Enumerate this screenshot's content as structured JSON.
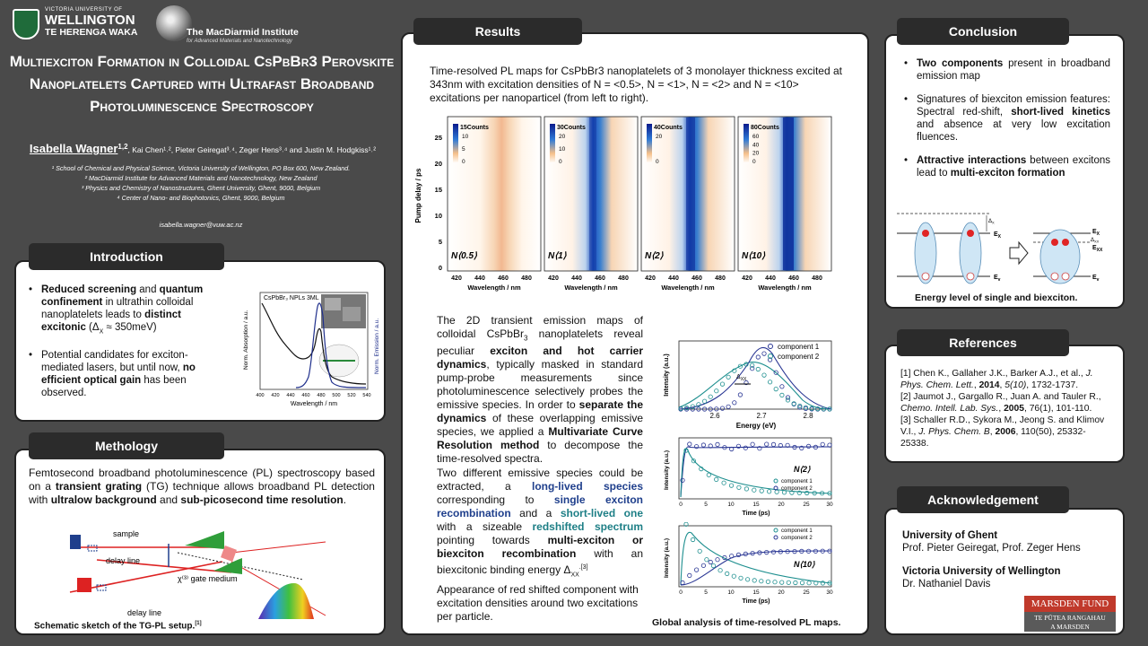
{
  "header": {
    "vuw_line1": "VICTORIA UNIVERSITY OF",
    "vuw_line2": "WELLINGTON",
    "vuw_line3": "TE HERENGA WAKA",
    "mac_name": "The MacDiarmid Institute",
    "mac_sub": "for Advanced Materials and Nanotechnology",
    "title": "Multiexciton Formation in Colloidal CsPbBr3 Perovskite Nanoplatelets Captured with Ultrafast Broadband Photoluminescence Spectroscopy",
    "lead_author": "Isabella Wagner",
    "lead_sup": "1,2",
    "coauthors": ", Kai Chen¹˒², Pieter Geiregat³˒⁴, Zeger Hens³˒⁴ and Justin M. Hodgkiss¹˒²",
    "affil_1": "¹ School of Chemical and Physical Science, Victoria University of Wellington, PO Box 600, New Zealand.",
    "affil_2": "² MacDiarmid Institute for Advanced Materials and Nanotechnology, New Zealand",
    "affil_3": "³ Physics and Chemistry of Nanostructures, Ghent University, Ghent, 9000, Belgium",
    "affil_4": "⁴ Center of Nano- and Biophotonics, Ghent, 9000, Belgium",
    "email": "isabella.wagner@vuw.ac.nz"
  },
  "introduction": {
    "tab": "Introduction",
    "b1_1": "Reduced screening",
    "b1_2": " and ",
    "b1_3": "quantum confinement",
    "b1_4": " in ultrathin colloidal nanoplatelets leads to ",
    "b1_5": "distinct excitonic",
    "b1_6": " (Δ",
    "b1_7": "X",
    "b1_8": " ≈ 350meV)",
    "b2_1": "Potential candidates for exciton-mediated lasers, but until now, ",
    "b2_2": "no efficient optical gain",
    "b2_3": " has been observed.",
    "fig_title": "CsPbBr₃ NPLs 3ML",
    "ylabel_left": "Norm. Absorption / a.u.",
    "ylabel_right": "Norm. Emission / a.u.",
    "xlabel": "Wavelength / nm",
    "ticks": [
      "400",
      "420",
      "440",
      "460",
      "480",
      "500",
      "520",
      "540"
    ]
  },
  "methodology": {
    "tab": "Methology",
    "t1": "Femtosecond broadband photoluminescence (PL) spectroscopy based on a ",
    "t2": "transient grating",
    "t3": " (TG) technique allows broadband PL detection with ",
    "t4": "ultralow background",
    "t5": " and ",
    "t6": "sub-picosecond time resolution",
    "t7": ".",
    "label_sample": "sample",
    "label_delay1": "delay line",
    "label_delay2": "delay line",
    "label_gate": "χ⁽³⁾ gate medium",
    "caption": "Schematic sketch of the TG-PL setup.",
    "caption_ref": "[1]"
  },
  "results": {
    "tab": "Results",
    "intro": "Time-resolved PL maps for CsPbBr3 nanoplatelets of 3 monolayer thickness excited at 343nm with excitation densities of N = <0.5>, N = <1>, N = <2> and N = <10> excitations per nanoparticel (from left to right).",
    "map_ylabel": "Pump delay / ps",
    "map_xlabel": "Wavelength / nm",
    "map_yticks": [
      "0",
      "5",
      "10",
      "15",
      "20",
      "25"
    ],
    "map_xticks": [
      "420",
      "440",
      "460",
      "480"
    ],
    "maps": [
      {
        "label": "N⟨0.5⟩",
        "cb_title": "15Counts",
        "cb_ticks": [
          "10",
          "5",
          "0"
        ]
      },
      {
        "label": "N⟨1⟩",
        "cb_title": "30Counts",
        "cb_ticks": [
          "20",
          "10",
          "0"
        ]
      },
      {
        "label": "N⟨2⟩",
        "cb_title": "40Counts",
        "cb_ticks": [
          "20",
          "0"
        ]
      },
      {
        "label": "N⟨10⟩",
        "cb_title": "80Counts",
        "cb_ticks": [
          "60",
          "40",
          "20",
          "0"
        ]
      }
    ],
    "p1_a": "The 2D transient emission maps of colloidal CsPbBr",
    "p1_sub": "3",
    "p1_b": " nanoplatelets reveal peculiar ",
    "p1_c": "exciton and hot carrier dynamics",
    "p1_d": ", typically masked in standard pump-probe measurements since photoluminescence selectively probes the emissive species. In order to ",
    "p1_e": "separate the dynamics",
    "p1_f": " of these overlapping emissive species, we applied a ",
    "p1_g": "Multivariate Curve Resolution method",
    "p1_h": " to decompose the time-resolved spectra.",
    "p2_a": "Two different emissive species could be extracted, a ",
    "p2_b": "long-lived species",
    "p2_c": " corresponding to ",
    "p2_d": "single exciton recombination",
    "p2_e": " and a ",
    "p2_f": "short-lived one",
    "p2_g": " with a sizeable ",
    "p2_h": "redshifted spectrum",
    "p2_i": " pointing towards ",
    "p2_j": "multi-exciton or biexciton recombination",
    "p2_k": " with an biexcitonic binding energy Δ",
    "p2_sub": "XX",
    "p2_ref": ".[3]",
    "p3": "Appearance of red shifted component with excitation densities around two excitations per particle.",
    "spec_ylabel": "Intensity (a.u.)",
    "spec_xlabel": "Energy (eV)",
    "spec_xticks": [
      "2.6",
      "2.7",
      "2.8"
    ],
    "spec_delta": "Δ",
    "spec_delta_sub": "XX",
    "legend_c1": "component 1",
    "legend_c2": "component 2",
    "kin_ylabel": "Intensity (a.u.)",
    "kin_xlabel": "Time (ps)",
    "kin_xticks": [
      "0",
      "5",
      "10",
      "15",
      "20",
      "25",
      "30"
    ],
    "kin1_label": "N⟨2⟩",
    "kin2_label": "N⟨10⟩",
    "caption": "Global analysis of time-resolved PL maps."
  },
  "conclusion": {
    "tab": "Conclusion",
    "b1_a": "Two components",
    "b1_b": " present in broadband emission map",
    "b2_a": "Signatures of biexciton emission features: Spectral red-shift, ",
    "b2_b": "short-lived kinetics",
    "b2_c": " and absence at very low excitation fluences.",
    "b3_a": "Attractive interactions",
    "b3_b": " between excitons lead to ",
    "b3_c": "multi-exciton formation",
    "lab_dx": "Δ",
    "lab_dx_sub": "X",
    "lab_ex": "E",
    "lab_ex_sub": "X",
    "lab_dxx": "Δ",
    "lab_dxx_sub": "XX",
    "lab_exx": "E",
    "lab_exx_sub": "XX",
    "lab_ev": "E",
    "lab_ev_sub": "v",
    "caption": "Energy level of single and biexciton."
  },
  "references": {
    "tab": "References",
    "r1_a": "[1] Chen K., Gallaher J.K., Barker A.J., et al., ",
    "r1_b": "J. Phys. Chem. Lett.",
    "r1_c": ", ",
    "r1_d": "2014",
    "r1_e": ", ",
    "r1_f": "5(10)",
    "r1_g": ", 1732-1737.",
    "r2_a": "[2] Jaumot J., Gargallo R., Juan A. and Tauler R., ",
    "r2_b": "Chemo. Intell. Lab. Sys.",
    "r2_c": ", ",
    "r2_d": "2005",
    "r2_e": ", 76(1), 101-110.",
    "r3_a": "[3] Schaller R.D., Sykora M., Jeong S. and Klimov V.I., ",
    "r3_b": "J. Phys. Chem. B",
    "r3_c": ", ",
    "r3_d": "2006",
    "r3_e": ", 110(50), 25332-25338."
  },
  "acknowledgement": {
    "tab": "Acknowledgement",
    "h1": "University of Ghent",
    "t1": "Prof. Pieter Geiregat, Prof. Zeger Hens",
    "h2": "Victoria University of Wellington",
    "t2": "Dr. Nathaniel Davis",
    "marsden_1": "MARSDEN FUND",
    "marsden_2": "TE PŪTEA RANGAHAU",
    "marsden_3": "A MARSDEN"
  }
}
